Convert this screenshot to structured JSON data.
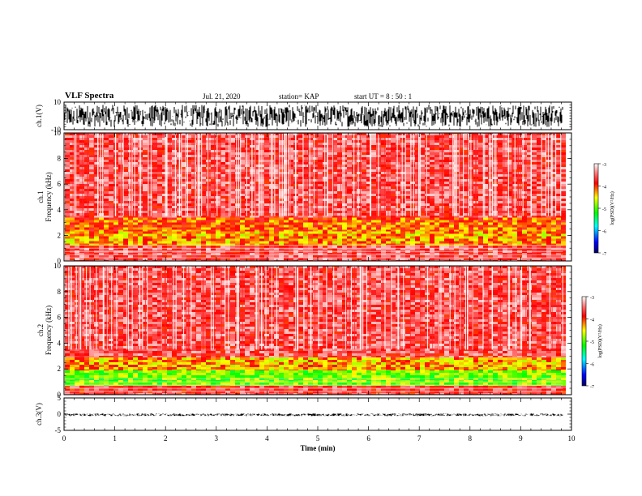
{
  "header": {
    "title": "VLF Spectra",
    "date": "Jul. 21, 2020",
    "station": "station= KAP",
    "start": "start  UT =  8 : 50 : 1"
  },
  "chart_data": [
    {
      "type": "line",
      "panel": "ch1-waveform",
      "ylabel": "ch.1(V)",
      "ylim": [
        -10,
        10
      ],
      "yticks": [
        "10",
        "-10"
      ],
      "xlim": [
        0,
        10
      ],
      "data_extent_x": [
        0,
        9.83
      ],
      "description_values": {
        "amplitude_range": [
          -8,
          8
        ]
      },
      "color": "#000000"
    },
    {
      "type": "heatmap",
      "panel": "ch1-spectrogram",
      "ylabel": "ch.1 Frequency (kHz)",
      "ylim": [
        0,
        10
      ],
      "yticks": [
        "0",
        "2",
        "4",
        "6",
        "8",
        "10"
      ],
      "xlim": [
        0,
        10
      ],
      "data_extent_x": [
        0,
        9.83
      ],
      "bands": [
        {
          "from": 0,
          "to": 1.2,
          "level": -3.6
        },
        {
          "from": 1.2,
          "to": 2.3,
          "level": -4.3
        },
        {
          "from": 2.3,
          "to": 3.4,
          "level": -4.1
        },
        {
          "from": 3.4,
          "to": 10,
          "level": -3.6
        }
      ],
      "colorbar": {
        "min": -7,
        "max": -3,
        "ticks": [
          "-3",
          "-4",
          "-5",
          "-6",
          "-7"
        ],
        "label": "log(PSD)(V²/Hz)"
      }
    },
    {
      "type": "heatmap",
      "panel": "ch2-spectrogram",
      "ylabel": "ch.2 Frequency (kHz)",
      "ylim": [
        0,
        10
      ],
      "yticks": [
        "0",
        "2",
        "4",
        "6",
        "8",
        "10"
      ],
      "xlim": [
        0,
        10
      ],
      "data_extent_x": [
        0,
        9.83
      ],
      "bands": [
        {
          "from": 0,
          "to": 0.7,
          "level": -3.7
        },
        {
          "from": 0.7,
          "to": 1.9,
          "level": -4.9
        },
        {
          "from": 1.9,
          "to": 2.9,
          "level": -4.3
        },
        {
          "from": 2.9,
          "to": 10,
          "level": -3.6
        }
      ],
      "colorbar": {
        "min": -7,
        "max": -3,
        "ticks": [
          "-3",
          "-4",
          "-5",
          "-6",
          "-7"
        ],
        "label": "log(PSD)(V²/Hz)"
      }
    },
    {
      "type": "line",
      "panel": "ch3-waveform",
      "ylabel": "ch.3(V)",
      "ylim": [
        -5,
        5
      ],
      "yticks": [
        "5",
        "0",
        "-5"
      ],
      "xlim": [
        0,
        10
      ],
      "data_extent_x": [
        0,
        9.83
      ],
      "description_values": {
        "amplitude_range": [
          -0.6,
          0.2
        ]
      },
      "xlabel": "Time  (min)",
      "xticks": [
        "0",
        "1",
        "2",
        "3",
        "4",
        "5",
        "6",
        "7",
        "8",
        "9",
        "10"
      ],
      "color": "#000000"
    }
  ]
}
